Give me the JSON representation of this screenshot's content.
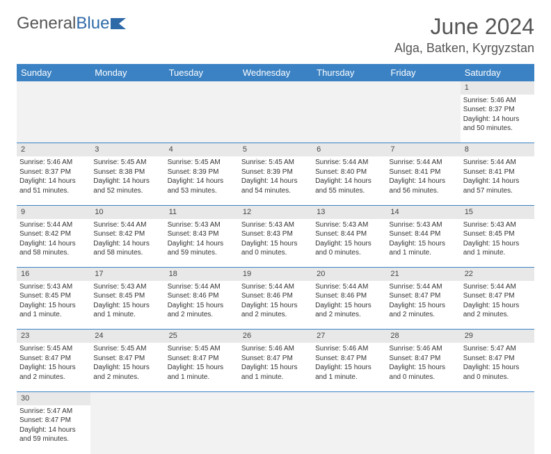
{
  "brand": {
    "part1": "General",
    "part2": "Blue"
  },
  "title": "June 2024",
  "location": "Alga, Batken, Kyrgyzstan",
  "colors": {
    "header_bg": "#3b82c4",
    "header_text": "#ffffff",
    "daynum_bg": "#e8e8e8",
    "empty_bg": "#f2f2f2",
    "rule": "#3b82c4",
    "title_color": "#555555",
    "text_color": "#333333",
    "brand_blue": "#2f6aa8"
  },
  "day_headers": [
    "Sunday",
    "Monday",
    "Tuesday",
    "Wednesday",
    "Thursday",
    "Friday",
    "Saturday"
  ],
  "weeks": [
    [
      null,
      null,
      null,
      null,
      null,
      null,
      {
        "n": "1",
        "sr": "Sunrise: 5:46 AM",
        "ss": "Sunset: 8:37 PM",
        "dl1": "Daylight: 14 hours",
        "dl2": "and 50 minutes."
      }
    ],
    [
      {
        "n": "2",
        "sr": "Sunrise: 5:46 AM",
        "ss": "Sunset: 8:37 PM",
        "dl1": "Daylight: 14 hours",
        "dl2": "and 51 minutes."
      },
      {
        "n": "3",
        "sr": "Sunrise: 5:45 AM",
        "ss": "Sunset: 8:38 PM",
        "dl1": "Daylight: 14 hours",
        "dl2": "and 52 minutes."
      },
      {
        "n": "4",
        "sr": "Sunrise: 5:45 AM",
        "ss": "Sunset: 8:39 PM",
        "dl1": "Daylight: 14 hours",
        "dl2": "and 53 minutes."
      },
      {
        "n": "5",
        "sr": "Sunrise: 5:45 AM",
        "ss": "Sunset: 8:39 PM",
        "dl1": "Daylight: 14 hours",
        "dl2": "and 54 minutes."
      },
      {
        "n": "6",
        "sr": "Sunrise: 5:44 AM",
        "ss": "Sunset: 8:40 PM",
        "dl1": "Daylight: 14 hours",
        "dl2": "and 55 minutes."
      },
      {
        "n": "7",
        "sr": "Sunrise: 5:44 AM",
        "ss": "Sunset: 8:41 PM",
        "dl1": "Daylight: 14 hours",
        "dl2": "and 56 minutes."
      },
      {
        "n": "8",
        "sr": "Sunrise: 5:44 AM",
        "ss": "Sunset: 8:41 PM",
        "dl1": "Daylight: 14 hours",
        "dl2": "and 57 minutes."
      }
    ],
    [
      {
        "n": "9",
        "sr": "Sunrise: 5:44 AM",
        "ss": "Sunset: 8:42 PM",
        "dl1": "Daylight: 14 hours",
        "dl2": "and 58 minutes."
      },
      {
        "n": "10",
        "sr": "Sunrise: 5:44 AM",
        "ss": "Sunset: 8:42 PM",
        "dl1": "Daylight: 14 hours",
        "dl2": "and 58 minutes."
      },
      {
        "n": "11",
        "sr": "Sunrise: 5:43 AM",
        "ss": "Sunset: 8:43 PM",
        "dl1": "Daylight: 14 hours",
        "dl2": "and 59 minutes."
      },
      {
        "n": "12",
        "sr": "Sunrise: 5:43 AM",
        "ss": "Sunset: 8:43 PM",
        "dl1": "Daylight: 15 hours",
        "dl2": "and 0 minutes."
      },
      {
        "n": "13",
        "sr": "Sunrise: 5:43 AM",
        "ss": "Sunset: 8:44 PM",
        "dl1": "Daylight: 15 hours",
        "dl2": "and 0 minutes."
      },
      {
        "n": "14",
        "sr": "Sunrise: 5:43 AM",
        "ss": "Sunset: 8:44 PM",
        "dl1": "Daylight: 15 hours",
        "dl2": "and 1 minute."
      },
      {
        "n": "15",
        "sr": "Sunrise: 5:43 AM",
        "ss": "Sunset: 8:45 PM",
        "dl1": "Daylight: 15 hours",
        "dl2": "and 1 minute."
      }
    ],
    [
      {
        "n": "16",
        "sr": "Sunrise: 5:43 AM",
        "ss": "Sunset: 8:45 PM",
        "dl1": "Daylight: 15 hours",
        "dl2": "and 1 minute."
      },
      {
        "n": "17",
        "sr": "Sunrise: 5:43 AM",
        "ss": "Sunset: 8:45 PM",
        "dl1": "Daylight: 15 hours",
        "dl2": "and 1 minute."
      },
      {
        "n": "18",
        "sr": "Sunrise: 5:44 AM",
        "ss": "Sunset: 8:46 PM",
        "dl1": "Daylight: 15 hours",
        "dl2": "and 2 minutes."
      },
      {
        "n": "19",
        "sr": "Sunrise: 5:44 AM",
        "ss": "Sunset: 8:46 PM",
        "dl1": "Daylight: 15 hours",
        "dl2": "and 2 minutes."
      },
      {
        "n": "20",
        "sr": "Sunrise: 5:44 AM",
        "ss": "Sunset: 8:46 PM",
        "dl1": "Daylight: 15 hours",
        "dl2": "and 2 minutes."
      },
      {
        "n": "21",
        "sr": "Sunrise: 5:44 AM",
        "ss": "Sunset: 8:47 PM",
        "dl1": "Daylight: 15 hours",
        "dl2": "and 2 minutes."
      },
      {
        "n": "22",
        "sr": "Sunrise: 5:44 AM",
        "ss": "Sunset: 8:47 PM",
        "dl1": "Daylight: 15 hours",
        "dl2": "and 2 minutes."
      }
    ],
    [
      {
        "n": "23",
        "sr": "Sunrise: 5:45 AM",
        "ss": "Sunset: 8:47 PM",
        "dl1": "Daylight: 15 hours",
        "dl2": "and 2 minutes."
      },
      {
        "n": "24",
        "sr": "Sunrise: 5:45 AM",
        "ss": "Sunset: 8:47 PM",
        "dl1": "Daylight: 15 hours",
        "dl2": "and 2 minutes."
      },
      {
        "n": "25",
        "sr": "Sunrise: 5:45 AM",
        "ss": "Sunset: 8:47 PM",
        "dl1": "Daylight: 15 hours",
        "dl2": "and 1 minute."
      },
      {
        "n": "26",
        "sr": "Sunrise: 5:46 AM",
        "ss": "Sunset: 8:47 PM",
        "dl1": "Daylight: 15 hours",
        "dl2": "and 1 minute."
      },
      {
        "n": "27",
        "sr": "Sunrise: 5:46 AM",
        "ss": "Sunset: 8:47 PM",
        "dl1": "Daylight: 15 hours",
        "dl2": "and 1 minute."
      },
      {
        "n": "28",
        "sr": "Sunrise: 5:46 AM",
        "ss": "Sunset: 8:47 PM",
        "dl1": "Daylight: 15 hours",
        "dl2": "and 0 minutes."
      },
      {
        "n": "29",
        "sr": "Sunrise: 5:47 AM",
        "ss": "Sunset: 8:47 PM",
        "dl1": "Daylight: 15 hours",
        "dl2": "and 0 minutes."
      }
    ],
    [
      {
        "n": "30",
        "sr": "Sunrise: 5:47 AM",
        "ss": "Sunset: 8:47 PM",
        "dl1": "Daylight: 14 hours",
        "dl2": "and 59 minutes."
      },
      null,
      null,
      null,
      null,
      null,
      null
    ]
  ]
}
